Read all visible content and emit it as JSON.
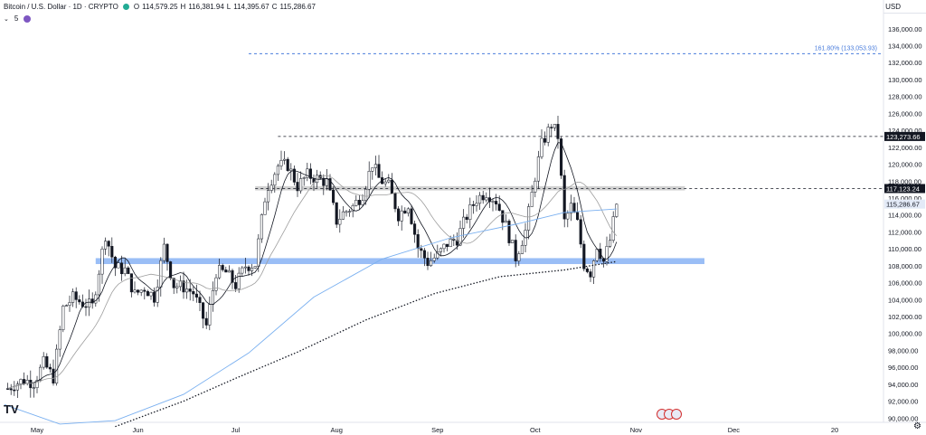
{
  "header": {
    "symbol": "Bitcoin / U.S. Dollar · 1D · CRYPTO",
    "open_label": "O",
    "open": "114,579.25",
    "high_label": "H",
    "high": "116,381.94",
    "low_label": "L",
    "low": "114,395.67",
    "close_label": "C",
    "close": "115,286.67"
  },
  "indicator": {
    "label": "5"
  },
  "currency": "USD",
  "colors": {
    "up": "#ffffff",
    "down": "#131722",
    "accent": "#4a7ddc",
    "band": "#8fb7f5",
    "zone": "#c7c7c7",
    "sma": "#7ab0f0"
  },
  "chart_data": {
    "type": "candlestick",
    "title": "Bitcoin / U.S. Dollar · 1D · CRYPTO",
    "xlabel": "",
    "ylabel": "",
    "ylim": [
      89000,
      138000
    ],
    "y_ticks": [
      "90,000.00",
      "92,000.00",
      "94,000.00",
      "96,000.00",
      "98,000.00",
      "100,000.00",
      "102,000.00",
      "104,000.00",
      "106,000.00",
      "108,000.00",
      "110,000.00",
      "112,000.00",
      "114,000.00",
      "116,000.00",
      "118,000.00",
      "120,000.00",
      "122,000.00",
      "124,000.00",
      "126,000.00",
      "128,000.00",
      "130,000.00",
      "132,000.00",
      "134,000.00",
      "136,000.00"
    ],
    "x_ticks": [
      "May",
      "Jun",
      "Jul",
      "Aug",
      "Sep",
      "Oct",
      "Nov",
      "Dec",
      "20"
    ],
    "x_range": [
      "2025-04-21",
      "2026-01-17"
    ],
    "closes": [
      {
        "date": "2025-04-22",
        "close": 93500
      },
      {
        "date": "2025-04-24",
        "close": 94000
      },
      {
        "date": "2025-04-27",
        "close": 94500
      },
      {
        "date": "2025-04-30",
        "close": 94200
      },
      {
        "date": "2025-05-03",
        "close": 96500
      },
      {
        "date": "2025-05-06",
        "close": 94800
      },
      {
        "date": "2025-05-09",
        "close": 103000
      },
      {
        "date": "2025-05-12",
        "close": 104200
      },
      {
        "date": "2025-05-15",
        "close": 103600
      },
      {
        "date": "2025-05-18",
        "close": 103200
      },
      {
        "date": "2025-05-21",
        "close": 109600
      },
      {
        "date": "2025-05-22",
        "close": 111700
      },
      {
        "date": "2025-05-25",
        "close": 107800
      },
      {
        "date": "2025-05-28",
        "close": 107500
      },
      {
        "date": "2025-05-31",
        "close": 104600
      },
      {
        "date": "2025-06-03",
        "close": 105400
      },
      {
        "date": "2025-06-06",
        "close": 104300
      },
      {
        "date": "2025-06-09",
        "close": 110200
      },
      {
        "date": "2025-06-12",
        "close": 105700
      },
      {
        "date": "2025-06-15",
        "close": 105500
      },
      {
        "date": "2025-06-18",
        "close": 104800
      },
      {
        "date": "2025-06-22",
        "close": 100900
      },
      {
        "date": "2025-06-25",
        "close": 107300
      },
      {
        "date": "2025-06-28",
        "close": 107200
      },
      {
        "date": "2025-07-01",
        "close": 105700
      },
      {
        "date": "2025-07-04",
        "close": 108000
      },
      {
        "date": "2025-07-07",
        "close": 108200
      },
      {
        "date": "2025-07-10",
        "close": 116000
      },
      {
        "date": "2025-07-11",
        "close": 117500
      },
      {
        "date": "2025-07-14",
        "close": 119800
      },
      {
        "date": "2025-07-17",
        "close": 119900
      },
      {
        "date": "2025-07-20",
        "close": 117400
      },
      {
        "date": "2025-07-23",
        "close": 118700
      },
      {
        "date": "2025-07-26",
        "close": 118300
      },
      {
        "date": "2025-07-29",
        "close": 117900
      },
      {
        "date": "2025-08-01",
        "close": 113300
      },
      {
        "date": "2025-08-03",
        "close": 114200
      },
      {
        "date": "2025-08-06",
        "close": 115000
      },
      {
        "date": "2025-08-09",
        "close": 116500
      },
      {
        "date": "2025-08-12",
        "close": 120100
      },
      {
        "date": "2025-08-14",
        "close": 118300
      },
      {
        "date": "2025-08-17",
        "close": 117400
      },
      {
        "date": "2025-08-20",
        "close": 114000
      },
      {
        "date": "2025-08-23",
        "close": 115300
      },
      {
        "date": "2025-08-26",
        "close": 110100
      },
      {
        "date": "2025-08-29",
        "close": 108400
      },
      {
        "date": "2025-09-01",
        "close": 109200
      },
      {
        "date": "2025-09-04",
        "close": 110600
      },
      {
        "date": "2025-09-07",
        "close": 111200
      },
      {
        "date": "2025-09-10",
        "close": 113900
      },
      {
        "date": "2025-09-13",
        "close": 115900
      },
      {
        "date": "2025-09-16",
        "close": 116700
      },
      {
        "date": "2025-09-19",
        "close": 115700
      },
      {
        "date": "2025-09-22",
        "close": 112700
      },
      {
        "date": "2025-09-25",
        "close": 109000
      },
      {
        "date": "2025-09-28",
        "close": 112100
      },
      {
        "date": "2025-10-01",
        "close": 118600
      },
      {
        "date": "2025-10-03",
        "close": 122300
      },
      {
        "date": "2025-10-06",
        "close": 124700
      },
      {
        "date": "2025-10-08",
        "close": 123300
      },
      {
        "date": "2025-10-10",
        "close": 113200
      },
      {
        "date": "2025-10-12",
        "close": 115000
      },
      {
        "date": "2025-10-14",
        "close": 113000
      },
      {
        "date": "2025-10-16",
        "close": 108200
      },
      {
        "date": "2025-10-18",
        "close": 107200
      },
      {
        "date": "2025-10-20",
        "close": 110500
      },
      {
        "date": "2025-10-22",
        "close": 108500
      },
      {
        "date": "2025-10-24",
        "close": 111000
      },
      {
        "date": "2025-10-26",
        "close": 115300
      }
    ],
    "horizontal_levels": [
      {
        "price": 133053.93,
        "label": "161.80% (133,053.93)",
        "style": "dashed-blue"
      },
      {
        "price": 123273.66,
        "label": "123,273.66",
        "style": "dashed-black"
      },
      {
        "price": 117123.24,
        "label": "117,123.24",
        "style": "dashed-black"
      }
    ],
    "current_price": "115,286.67",
    "zones": [
      {
        "from": 116900,
        "to": 117400,
        "color": "grey"
      },
      {
        "from": 108200,
        "to": 108900,
        "color": "blue"
      }
    ],
    "grid": false,
    "legend": "none"
  }
}
